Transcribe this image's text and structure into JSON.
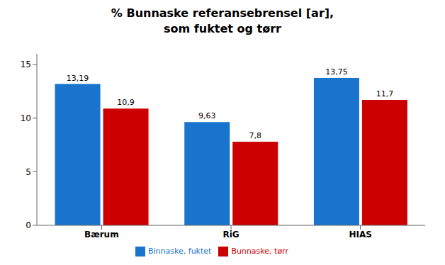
{
  "chart_data": {
    "type": "bar",
    "title": "% Bunnaske referansebrensel [ar],\nsom fuktet og tørr",
    "categories": [
      "Bærum",
      "RiG",
      "HIAS"
    ],
    "series": [
      {
        "name": "Binnaske, fuktet",
        "color": "#1874cd",
        "values": [
          13.19,
          9.63,
          13.75
        ],
        "value_labels": [
          "13,19",
          "9,63",
          "13,75"
        ]
      },
      {
        "name": "Bunnaske, tørr",
        "color": "#cc0000",
        "values": [
          10.9,
          7.8,
          11.7
        ],
        "value_labels": [
          "10,9",
          "7,8",
          "11,7"
        ]
      }
    ],
    "ylim": [
      0,
      16
    ],
    "yticks": [
      0,
      5,
      10,
      15
    ],
    "grid": false,
    "legend": "bottom",
    "data_labels": true
  }
}
